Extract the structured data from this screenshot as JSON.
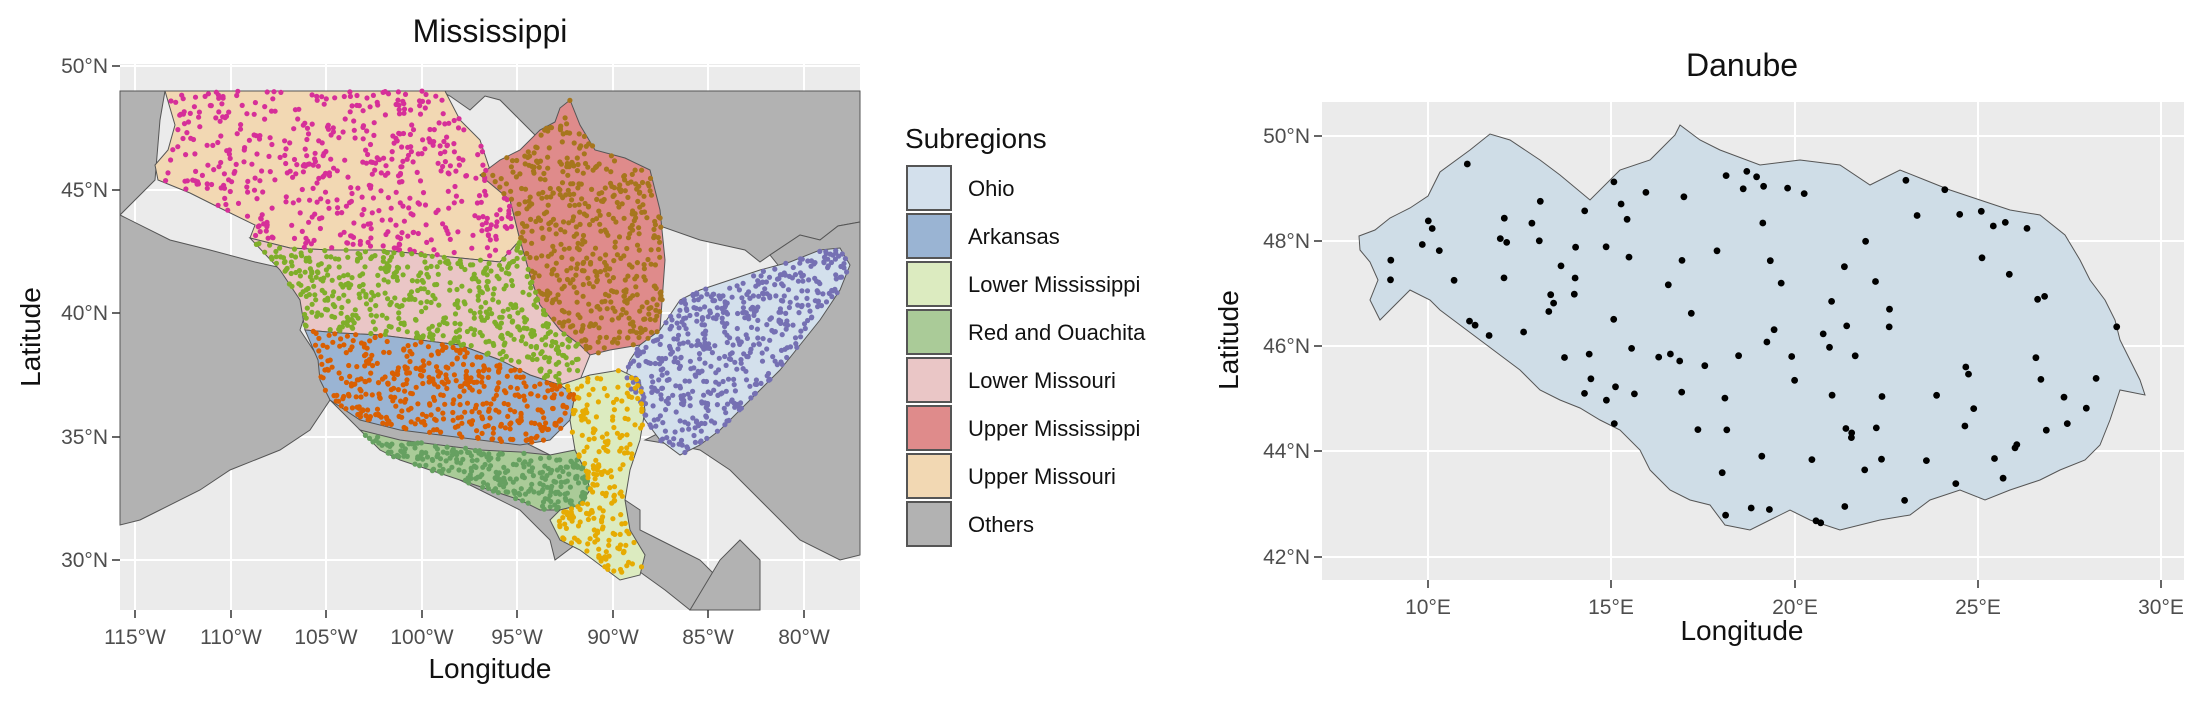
{
  "maps": [
    {
      "id": "mississippi",
      "title": "Mississippi",
      "xlabel": "Longitude",
      "ylabel": "Latitude",
      "xticks": [
        "115°W",
        "110°W",
        "105°W",
        "100°W",
        "95°W",
        "90°W",
        "85°W",
        "80°W"
      ],
      "yticks": [
        "50°N",
        "45°N",
        "40°N",
        "35°N",
        "30°N"
      ],
      "lon_range": [
        -116,
        -77
      ],
      "lat_range": [
        28,
        50
      ]
    },
    {
      "id": "danube",
      "title": "Danube",
      "xlabel": "Longitude",
      "ylabel": "Latitude",
      "xticks": [
        "10°E",
        "15°E",
        "20°E",
        "25°E",
        "30°E"
      ],
      "yticks": [
        "50°N",
        "48°N",
        "46°N",
        "44°N",
        "42°N"
      ],
      "lon_range": [
        7.2,
        30.5
      ],
      "lat_range": [
        41.7,
        50.7
      ]
    }
  ],
  "legend": {
    "title": "Subregions",
    "items": [
      {
        "label": "Ohio",
        "fill": "#d3e0ec",
        "dot": "#7570b3"
      },
      {
        "label": "Arkansas",
        "fill": "#9ab4d3",
        "dot": "#d95f02"
      },
      {
        "label": "Lower Mississippi",
        "fill": "#dcebc0",
        "dot": "#e6ab02"
      },
      {
        "label": "Red and Ouachita",
        "fill": "#aacb98",
        "dot": "#66a061"
      },
      {
        "label": "Lower Missouri",
        "fill": "#eac6c6",
        "dot": "#7fae2a"
      },
      {
        "label": "Upper Mississippi",
        "fill": "#df8b8b",
        "dot": "#a6761d"
      },
      {
        "label": "Upper Missouri",
        "fill": "#f2d8b3",
        "dot": "#d62f99"
      },
      {
        "label": "Others",
        "fill": "#b2b2b2",
        "dot": ""
      }
    ]
  },
  "colors": {
    "panel_bg": "#ebebeb",
    "grid": "#ffffff",
    "others": "#b2b2b2",
    "danube_fill": "#cfdde7",
    "danube_dot": "#000000",
    "border": "#555555"
  }
}
